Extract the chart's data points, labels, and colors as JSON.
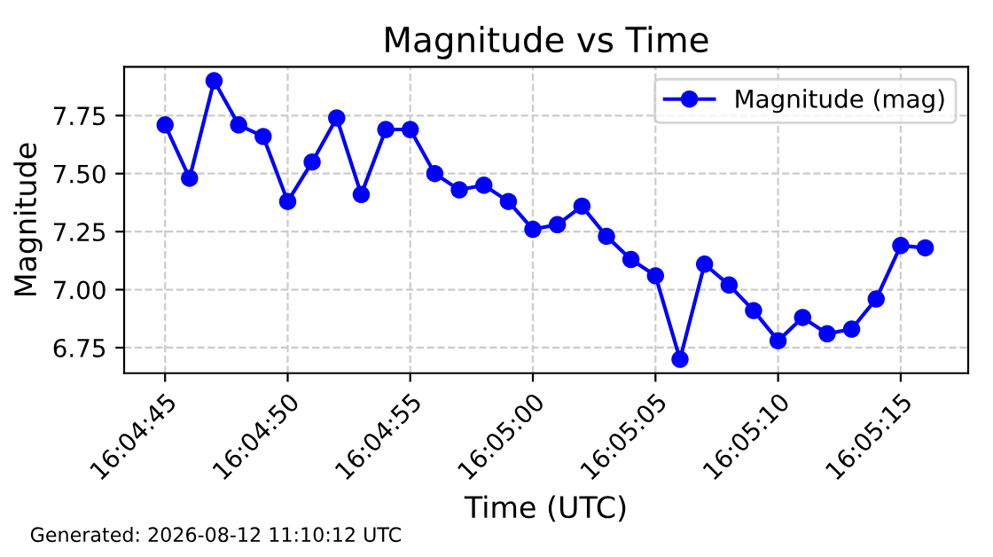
{
  "chart_data": {
    "type": "line",
    "title": "Magnitude vs Time",
    "xlabel": "Time (UTC)",
    "ylabel": "Magnitude",
    "x": [
      16.079167,
      16.079444,
      16.079722,
      16.08,
      16.080278,
      16.080556,
      16.080833,
      16.081111,
      16.081389,
      16.081667,
      16.081944,
      16.082222,
      16.0825,
      16.082778,
      16.083056,
      16.083333,
      16.083611,
      16.083889,
      16.084167,
      16.084444,
      16.084722,
      16.085,
      16.085278,
      16.085556,
      16.085833,
      16.086111,
      16.086389,
      16.086667,
      16.086944,
      16.087222,
      16.0875,
      16.087778
    ],
    "series": [
      {
        "name": "Magnitude (mag)",
        "color": "#0000ff",
        "values": [
          7.71,
          7.48,
          7.9,
          7.71,
          7.66,
          7.38,
          7.55,
          7.74,
          7.41,
          7.69,
          7.69,
          7.5,
          7.43,
          7.45,
          7.38,
          7.26,
          7.28,
          7.36,
          7.23,
          7.13,
          7.06,
          6.7,
          7.11,
          7.02,
          6.91,
          6.78,
          6.88,
          6.81,
          6.83,
          6.96,
          7.19,
          7.18
        ]
      }
    ],
    "xlim": [
      16.078703,
      16.088264
    ],
    "xticks": [
      {
        "value": 16.079167,
        "label": "16:04:45"
      },
      {
        "value": 16.080556,
        "label": "16:04:50"
      },
      {
        "value": 16.081944,
        "label": "16:04:55"
      },
      {
        "value": 16.083333,
        "label": "16:05:00"
      },
      {
        "value": 16.084722,
        "label": "16:05:05"
      },
      {
        "value": 16.086111,
        "label": "16:05:10"
      },
      {
        "value": 16.0875,
        "label": "16:05:15"
      }
    ],
    "ylim": [
      6.64,
      7.96
    ],
    "yticks": [
      {
        "value": 6.75,
        "label": "6.75"
      },
      {
        "value": 7.0,
        "label": "7.00"
      },
      {
        "value": 7.25,
        "label": "7.25"
      },
      {
        "value": 7.5,
        "label": "7.50"
      },
      {
        "value": 7.75,
        "label": "7.75"
      }
    ],
    "grid": true,
    "legend": "top right",
    "marker": "circle",
    "line_style": "solid",
    "annotations": [
      "Generated: 2026-08-12 11:10:12 UTC"
    ]
  }
}
